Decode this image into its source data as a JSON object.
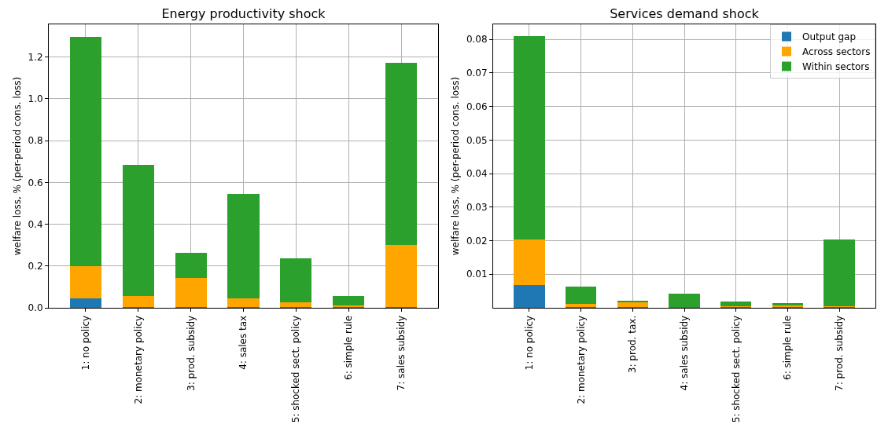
{
  "chart_data": [
    {
      "type": "bar",
      "title": "Energy productivity shock",
      "ylabel": "welfare loss, % (per-period cons. loss)",
      "stacked": true,
      "grid": true,
      "legend": false,
      "categories": [
        "1: no policy",
        "2: monetary policy",
        "3: prod. subsidy",
        "4: sales tax",
        "5: shocked sect. policy",
        "6: simple rule",
        "7: sales subsidy"
      ],
      "ylim": [
        0,
        1.357
      ],
      "yticks": [
        {
          "value": 0,
          "label": "0.0"
        },
        0.2,
        0.4,
        0.6,
        0.8,
        {
          "value": 1,
          "label": "1.0"
        },
        1.2
      ],
      "series": [
        {
          "color": "#1f77b4",
          "values": [
            0.045,
            0.002,
            0.002,
            0.002,
            0.002,
            0.002,
            0.002
          ]
        },
        {
          "color": "#ffa500",
          "values": [
            0.155,
            0.053,
            0.141,
            0.043,
            0.025,
            0.01,
            0.298
          ]
        },
        {
          "color": "#2ca02c",
          "values": [
            1.095,
            0.63,
            0.12,
            0.5,
            0.21,
            0.045,
            0.873
          ]
        }
      ]
    },
    {
      "type": "bar",
      "title": "Services demand shock",
      "ylabel": "welfare loss, % (per-period cons. loss)",
      "stacked": true,
      "grid": true,
      "legend": "top right",
      "categories": [
        "1: no policy",
        "2: monetary policy",
        "3: prod. tax.",
        "4: sales subsidy",
        "5: shocked sect. policy",
        "6: simple rule",
        "7: prod. subsidy"
      ],
      "ylim": [
        0,
        0.0845
      ],
      "yticks": [
        0.01,
        0.02,
        0.03,
        0.04,
        0.05,
        0.06,
        0.07,
        0.08
      ],
      "series": [
        {
          "name": "Output gap",
          "color": "#1f77b4",
          "values": [
            0.0069,
            0.0002,
            0.0002,
            0.0002,
            0.0002,
            0.0002,
            0.0002
          ]
        },
        {
          "name": "Across sectors",
          "color": "#ffa500",
          "values": [
            0.0134,
            0.0009,
            0.0014,
            0.0001,
            0.0002,
            0.0004,
            0.0003
          ]
        },
        {
          "name": "Within sectors",
          "color": "#2ca02c",
          "values": [
            0.0607,
            0.0053,
            0.0004,
            0.0038,
            0.0014,
            0.0009,
            0.0199
          ]
        }
      ]
    }
  ]
}
